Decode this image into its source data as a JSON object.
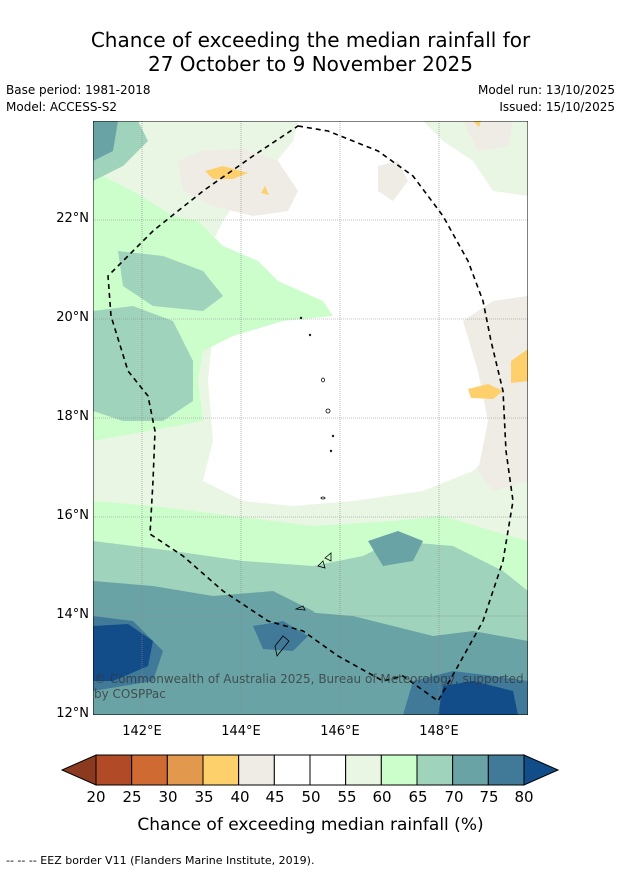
{
  "title_line1": "Chance of exceeding the median rainfall for",
  "title_line2": "27 October to 9 November 2025",
  "base_period": "Base period: 1981-2018",
  "model": "Model: ACCESS-S2",
  "model_run": "Model run: 13/10/2025",
  "issued": "Issued: 15/10/2025",
  "lat_labels": [
    "22°N",
    "20°N",
    "18°N",
    "16°N",
    "14°N",
    "12°N"
  ],
  "lon_labels": [
    "142°E",
    "144°E",
    "146°E",
    "148°E"
  ],
  "copyright": "© Commonwealth of Australia 2025, Bureau of Meteorology, supported by COSPPac",
  "colorbar_ticks": [
    "20",
    "25",
    "30",
    "35",
    "40",
    "45",
    "50",
    "55",
    "60",
    "65",
    "70",
    "75",
    "80"
  ],
  "colorbar_label": "Chance of exceeding median rainfall (%)",
  "colorbar_colors": [
    "#8b3a1f",
    "#b14a26",
    "#cf6a33",
    "#e2994e",
    "#fdd06c",
    "#efebe5",
    "#ffffff",
    "#ffffff",
    "#e9f6e4",
    "#ccfecc",
    "#9fd3bb",
    "#6aa3a5",
    "#417a98",
    "#124d8a"
  ],
  "footer": "--  --  -- EEZ border V11 (Flanders Marine Institute, 2019)."
}
